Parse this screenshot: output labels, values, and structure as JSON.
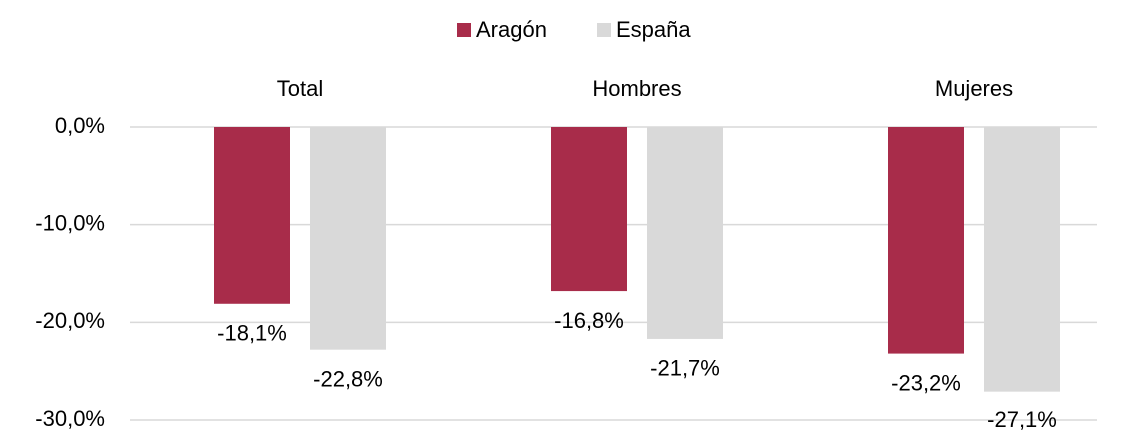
{
  "chart_data": {
    "type": "bar",
    "categories": [
      "Total",
      "Hombres",
      "Mujeres"
    ],
    "series": [
      {
        "name": "Aragón",
        "color": "#a82c4a",
        "values": [
          -18.1,
          -16.8,
          -23.2
        ],
        "value_labels": [
          "-18,1%",
          "-16,8%",
          "-23,2%"
        ]
      },
      {
        "name": "España",
        "color": "#d9d9d9",
        "values": [
          -22.8,
          -21.7,
          -27.1
        ],
        "value_labels": [
          "-22,8%",
          "-21,7%",
          "-27,1%"
        ]
      }
    ],
    "ylim": [
      -30,
      0
    ],
    "yticks": [
      {
        "value": 0,
        "label": "0,0%"
      },
      {
        "value": -10,
        "label": "-10,0%"
      },
      {
        "value": -20,
        "label": "-20,0%"
      },
      {
        "value": -30,
        "label": "-30,0%"
      }
    ],
    "grid": true,
    "legend": "top"
  }
}
